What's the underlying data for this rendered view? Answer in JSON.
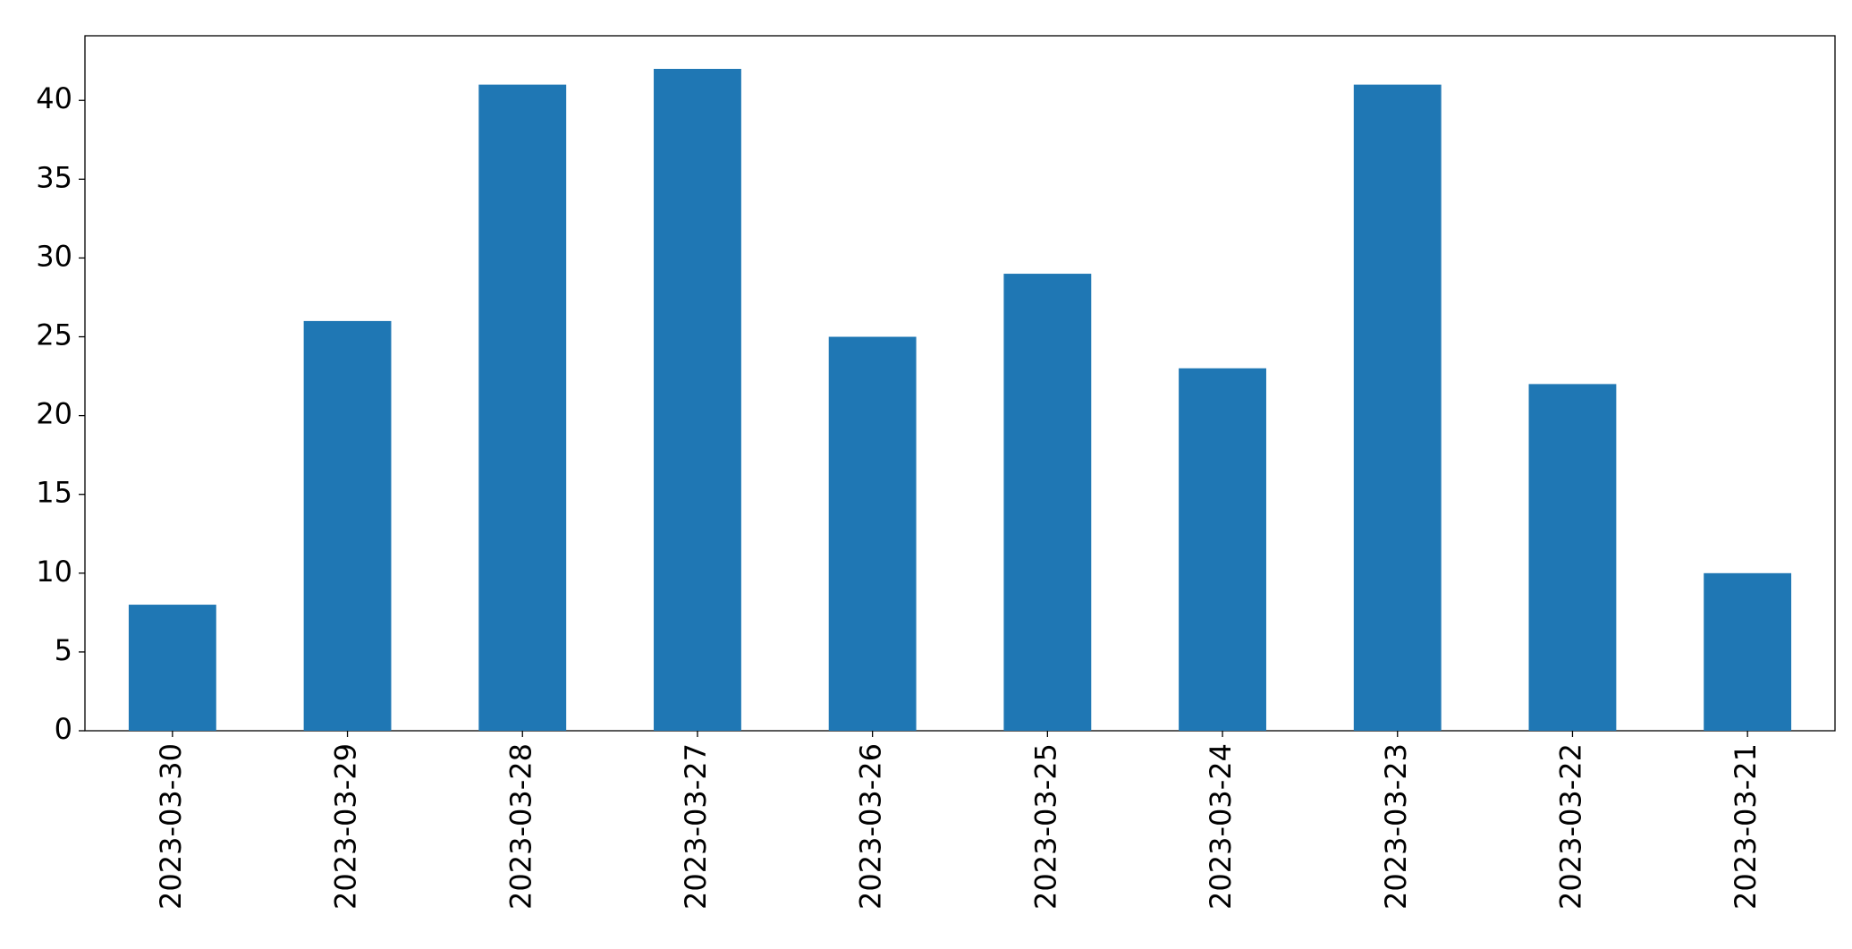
{
  "chart_data": {
    "type": "bar",
    "categories": [
      "2023-03-30",
      "2023-03-29",
      "2023-03-28",
      "2023-03-27",
      "2023-03-26",
      "2023-03-25",
      "2023-03-24",
      "2023-03-23",
      "2023-03-22",
      "2023-03-21"
    ],
    "values": [
      8,
      26,
      41,
      42,
      25,
      29,
      23,
      41,
      22,
      10
    ],
    "color": "#1f77b4",
    "ylim": [
      0,
      44.1
    ],
    "yticks": [
      0,
      5,
      10,
      15,
      20,
      25,
      30,
      35,
      40
    ],
    "grid": false
  }
}
